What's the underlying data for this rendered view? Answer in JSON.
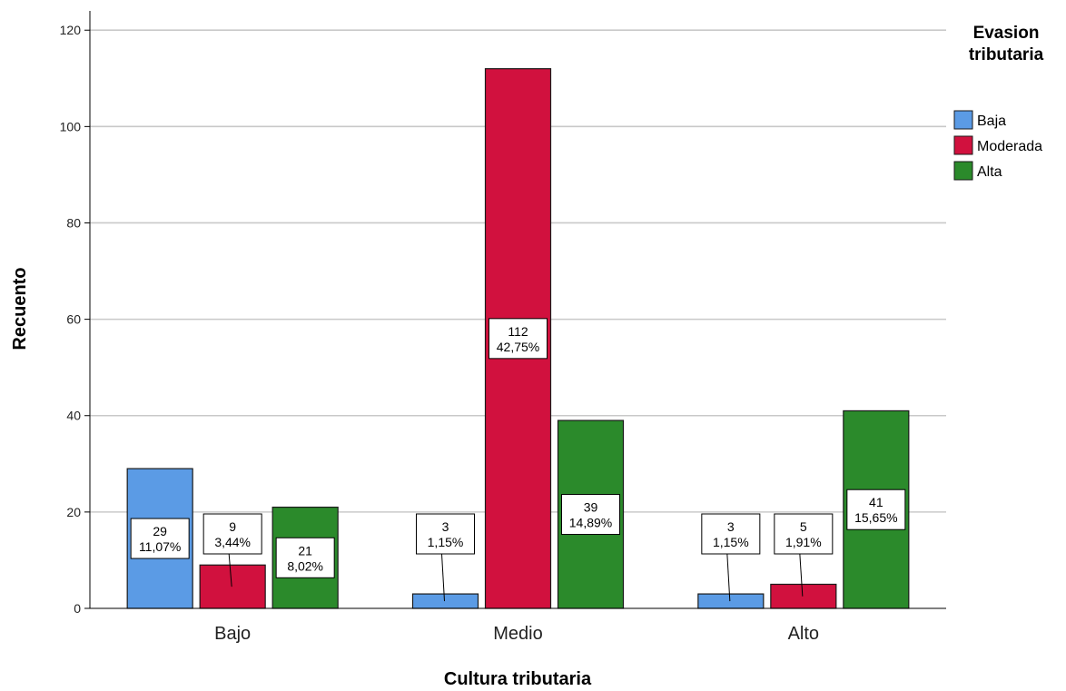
{
  "chart_data": {
    "type": "bar",
    "xlabel": "Cultura tributaria",
    "ylabel": "Recuento",
    "ylim": [
      0,
      124
    ],
    "yticks": [
      0,
      20,
      40,
      60,
      80,
      100,
      120
    ],
    "grid": true,
    "categories": [
      "Bajo",
      "Medio",
      "Alto"
    ],
    "legend": {
      "title": [
        "Evasion",
        "tributaria"
      ],
      "placement": "top-right"
    },
    "series": [
      {
        "name": "Baja",
        "color": "#5b9be5",
        "values": [
          29,
          3,
          3
        ],
        "labels": [
          [
            "29",
            "11,07%"
          ],
          [
            "3",
            "1,15%"
          ],
          [
            "3",
            "1,15%"
          ]
        ]
      },
      {
        "name": "Moderada",
        "color": "#d1113e",
        "values": [
          9,
          112,
          5
        ],
        "labels": [
          [
            "9",
            "3,44%"
          ],
          [
            "112",
            "42,75%"
          ],
          [
            "5",
            "1,91%"
          ]
        ]
      },
      {
        "name": "Alta",
        "color": "#2b8a2b",
        "values": [
          21,
          39,
          41
        ],
        "labels": [
          [
            "21",
            "8,02%"
          ],
          [
            "39",
            "14,89%"
          ],
          [
            "41",
            "15,65%"
          ]
        ]
      }
    ]
  }
}
